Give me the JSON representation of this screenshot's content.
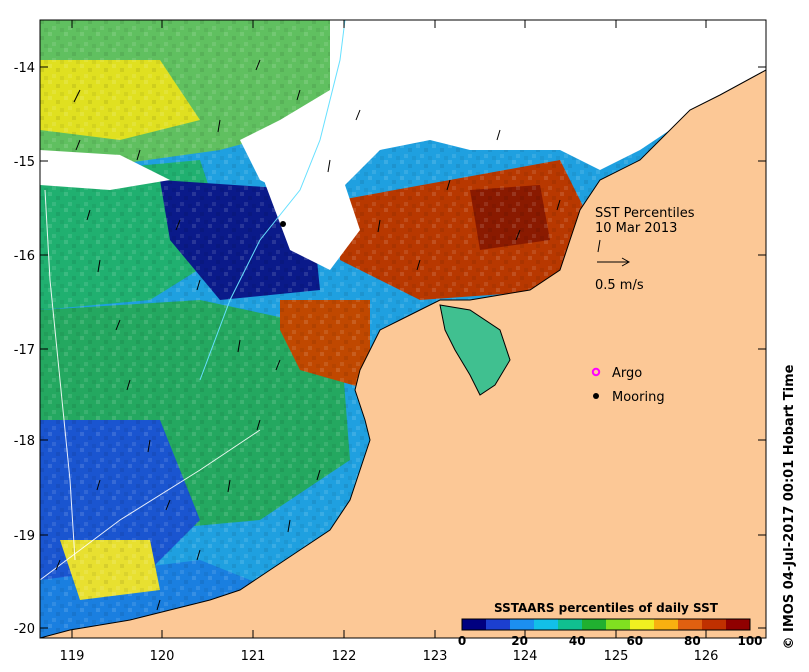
{
  "map": {
    "title_line1": "SST Percentiles",
    "title_line2": "10 Mar 2013",
    "vector_scale_label": "0.5 m/s",
    "legend_argo": "Argo",
    "legend_mooring": "Mooring",
    "credit": "© IMOS 04-Jul-2017 00:01 Hobart Time",
    "lon_ticks": [
      "119",
      "120",
      "121",
      "122",
      "123",
      "124",
      "125",
      "126"
    ],
    "lat_ticks": [
      "-14",
      "-15",
      "-16",
      "-17",
      "-18",
      "-19",
      "-20"
    ],
    "colorbar": {
      "title": "SSTAARS percentiles of daily SST",
      "tick_labels": [
        "0",
        "20",
        "40",
        "60",
        "80",
        "100"
      ],
      "colors": [
        "#000080",
        "#1c3fd0",
        "#1c8ff0",
        "#12c0e8",
        "#10c090",
        "#20b030",
        "#80e020",
        "#f0f020",
        "#f8b010",
        "#e06010",
        "#c03000",
        "#900000"
      ]
    },
    "colors": {
      "land": "#fcc896",
      "no_data": "#ffffff",
      "cold": "#0a1a8a",
      "warm": "#c04000",
      "argo_marker": "#ff00ff",
      "mooring_marker": "#000000"
    }
  }
}
